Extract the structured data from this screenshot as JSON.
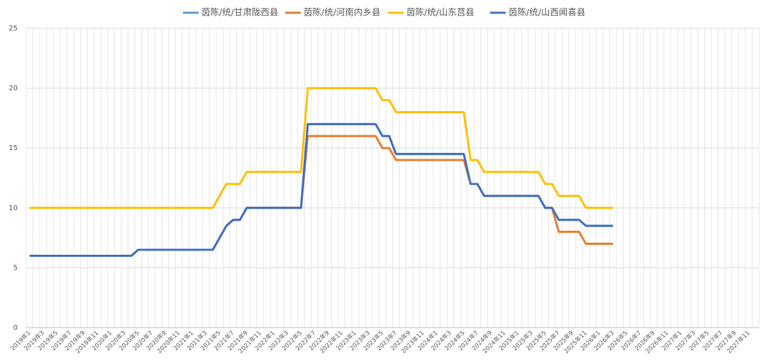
{
  "chart_data": {
    "type": "line",
    "categories": [
      "2019年1",
      null,
      "2019年3",
      null,
      "2019年5",
      null,
      "2019年7",
      null,
      "2019年9",
      null,
      "2019年11",
      null,
      "2020年1",
      null,
      "2020年3",
      null,
      "2020年5",
      null,
      "2020年7",
      null,
      "2020年9",
      null,
      "2020年11",
      null,
      "2021年1",
      null,
      "2021年3",
      null,
      "2021年5",
      null,
      "2021年7",
      null,
      "2021年9",
      null,
      "2021年11",
      null,
      "2022年1",
      null,
      "2022年3",
      null,
      "2022年5",
      null,
      "2022年7",
      null,
      "2022年9",
      null,
      "2022年11",
      null,
      "2023年1",
      null,
      "2023年3",
      null,
      "2023年5",
      null,
      "2023年7",
      null,
      "2023年9",
      null,
      "2023年11",
      null,
      "2024年1",
      null,
      "2024年3",
      null,
      "2024年5",
      null,
      "2024年7",
      null,
      "2024年9",
      null,
      "2024年11",
      null,
      "2025年1",
      null,
      "2025年3",
      null,
      "2025年5",
      null,
      "2025年7",
      null,
      "2025年9",
      null,
      "2025年11",
      null,
      "2026年1",
      null,
      "2026年3",
      null,
      "2026年5",
      null,
      "2026年7",
      null,
      "2026年9",
      null,
      "2026年11",
      null,
      "2027年1",
      null,
      "2027年3",
      null,
      "2027年5",
      null,
      "2027年7",
      null,
      "2027年9",
      null,
      "2027年11",
      null
    ],
    "series": [
      {
        "name": "茵陈/统/甘肃陇西县",
        "color": "#5b9bd5",
        "values": [
          6,
          6,
          6,
          6,
          6,
          6,
          6,
          6,
          6,
          6,
          6,
          6,
          6,
          6,
          6,
          6,
          6.5,
          6.5,
          6.5,
          6.5,
          6.5,
          6.5,
          6.5,
          6.5,
          6.5,
          6.5,
          6.5,
          6.5,
          7.5,
          8.5,
          9,
          9,
          10,
          10,
          10,
          10,
          10,
          10,
          10,
          10,
          10,
          17,
          17,
          17,
          17,
          17,
          17,
          17,
          17,
          17,
          17,
          17,
          16,
          16,
          14.5,
          14.5,
          14.5,
          14.5,
          14.5,
          14.5,
          14.5,
          14.5,
          14.5,
          14.5,
          14.5,
          12,
          12,
          11,
          11,
          11,
          11,
          11,
          11,
          11,
          11,
          11,
          10,
          10,
          9,
          9,
          9,
          9,
          8.5,
          8.5,
          8.5,
          8.5,
          8.5,
          null,
          null,
          null,
          null,
          null,
          null,
          null,
          null,
          null,
          null,
          null,
          null,
          null,
          null,
          null,
          null,
          null,
          null,
          null,
          null,
          null
        ]
      },
      {
        "name": "茵陈/统/河南内乡县",
        "color": "#ed7d31",
        "values": [
          6,
          6,
          6,
          6,
          6,
          6,
          6,
          6,
          6,
          6,
          6,
          6,
          6,
          6,
          6,
          6,
          6.5,
          6.5,
          6.5,
          6.5,
          6.5,
          6.5,
          6.5,
          6.5,
          6.5,
          6.5,
          6.5,
          6.5,
          7.5,
          8.5,
          9,
          9,
          10,
          10,
          10,
          10,
          10,
          10,
          10,
          10,
          10,
          16,
          16,
          16,
          16,
          16,
          16,
          16,
          16,
          16,
          16,
          16,
          15,
          15,
          14,
          14,
          14,
          14,
          14,
          14,
          14,
          14,
          14,
          14,
          14,
          12,
          12,
          11,
          11,
          11,
          11,
          11,
          11,
          11,
          11,
          11,
          10,
          10,
          8,
          8,
          8,
          8,
          7,
          7,
          7,
          7,
          7,
          null,
          null,
          null,
          null,
          null,
          null,
          null,
          null,
          null,
          null,
          null,
          null,
          null,
          null,
          null,
          null,
          null,
          null,
          null,
          null,
          null
        ]
      },
      {
        "name": "茵陈/统/山东莒县",
        "color": "#ffc000",
        "values": [
          10,
          10,
          10,
          10,
          10,
          10,
          10,
          10,
          10,
          10,
          10,
          10,
          10,
          10,
          10,
          10,
          10,
          10,
          10,
          10,
          10,
          10,
          10,
          10,
          10,
          10,
          10,
          10,
          11,
          12,
          12,
          12,
          13,
          13,
          13,
          13,
          13,
          13,
          13,
          13,
          13,
          20,
          20,
          20,
          20,
          20,
          20,
          20,
          20,
          20,
          20,
          20,
          19,
          19,
          18,
          18,
          18,
          18,
          18,
          18,
          18,
          18,
          18,
          18,
          18,
          14,
          14,
          13,
          13,
          13,
          13,
          13,
          13,
          13,
          13,
          13,
          12,
          12,
          11,
          11,
          11,
          11,
          10,
          10,
          10,
          10,
          10,
          null,
          null,
          null,
          null,
          null,
          null,
          null,
          null,
          null,
          null,
          null,
          null,
          null,
          null,
          null,
          null,
          null,
          null,
          null,
          null,
          null
        ]
      },
      {
        "name": "茵陈/统/山西闻喜县",
        "color": "#4472c4",
        "values": [
          6,
          6,
          6,
          6,
          6,
          6,
          6,
          6,
          6,
          6,
          6,
          6,
          6,
          6,
          6,
          6,
          6.5,
          6.5,
          6.5,
          6.5,
          6.5,
          6.5,
          6.5,
          6.5,
          6.5,
          6.5,
          6.5,
          6.5,
          7.5,
          8.5,
          9,
          9,
          10,
          10,
          10,
          10,
          10,
          10,
          10,
          10,
          10,
          17,
          17,
          17,
          17,
          17,
          17,
          17,
          17,
          17,
          17,
          17,
          16,
          16,
          14.5,
          14.5,
          14.5,
          14.5,
          14.5,
          14.5,
          14.5,
          14.5,
          14.5,
          14.5,
          14.5,
          12,
          12,
          11,
          11,
          11,
          11,
          11,
          11,
          11,
          11,
          11,
          10,
          10,
          9,
          9,
          9,
          9,
          8.5,
          8.5,
          8.5,
          8.5,
          8.5,
          null,
          null,
          null,
          null,
          null,
          null,
          null,
          null,
          null,
          null,
          null,
          null,
          null,
          null,
          null,
          null,
          null,
          null,
          null,
          null,
          null
        ]
      }
    ],
    "ylim": [
      0,
      25
    ],
    "yticks": [
      0,
      5,
      10,
      15,
      20,
      25
    ],
    "grid": true,
    "legend": "top"
  }
}
